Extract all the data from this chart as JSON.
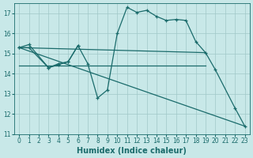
{
  "background_color": "#c8e8e8",
  "grid_color": "#a0c8c8",
  "line_color": "#1a6b6b",
  "xlabel": "Humidex (Indice chaleur)",
  "xlim": [
    -0.5,
    23.5
  ],
  "ylim": [
    11,
    17.5
  ],
  "yticks": [
    11,
    12,
    13,
    14,
    15,
    16,
    17
  ],
  "xticks": [
    0,
    1,
    2,
    3,
    4,
    5,
    6,
    7,
    8,
    9,
    10,
    11,
    12,
    13,
    14,
    15,
    16,
    17,
    18,
    19,
    20,
    21,
    22,
    23
  ],
  "line1_x": [
    0,
    1,
    3,
    4,
    5,
    6,
    7,
    8,
    9,
    10,
    11,
    12,
    13,
    14,
    15,
    16,
    17,
    18,
    19,
    20,
    22,
    23
  ],
  "line1_y": [
    15.3,
    15.45,
    14.3,
    14.5,
    14.6,
    15.4,
    14.5,
    12.8,
    13.2,
    16.0,
    17.3,
    17.05,
    17.15,
    16.85,
    16.65,
    16.7,
    16.65,
    15.6,
    15.05,
    14.2,
    12.3,
    11.4
  ],
  "line2_x": [
    0,
    1,
    3,
    4,
    5,
    6
  ],
  "line2_y": [
    15.3,
    15.3,
    14.3,
    14.45,
    14.6,
    15.4
  ],
  "line3_x": [
    0,
    19
  ],
  "line3_y": [
    15.3,
    15.05
  ],
  "line4_x": [
    0,
    19
  ],
  "line4_y": [
    14.4,
    14.4
  ],
  "line5_x": [
    0,
    23
  ],
  "line5_y": [
    15.3,
    11.4
  ]
}
